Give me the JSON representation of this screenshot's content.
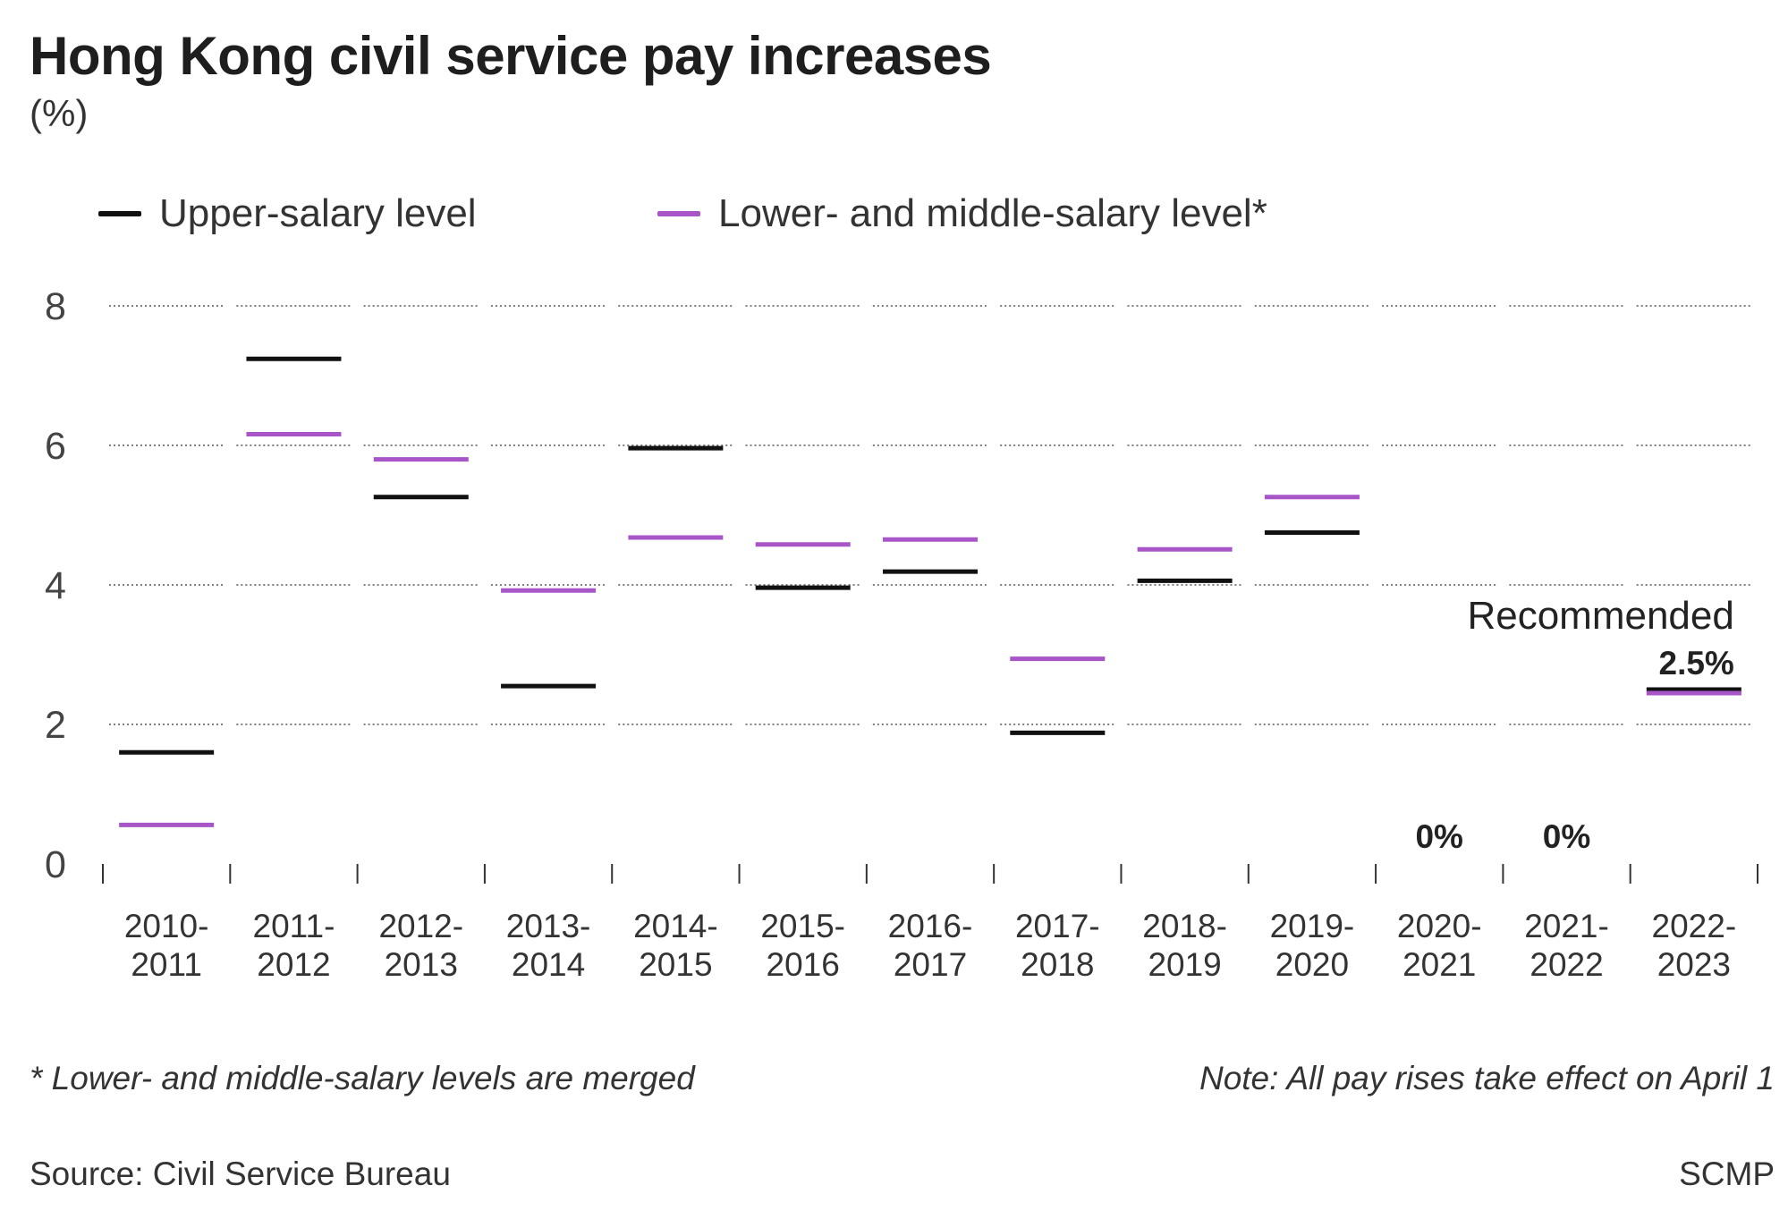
{
  "header": {
    "title": "Hong Kong civil service pay increases",
    "subtitle": "(%)"
  },
  "legend": {
    "upper": {
      "label": "Upper-salary level",
      "color": "#111111"
    },
    "lower": {
      "label": "Lower- and middle-salary level*",
      "color": "#a855c8"
    }
  },
  "footer": {
    "note_left": "* Lower- and middle-salary levels are merged",
    "note_right": "Note: All pay rises take effect on April 1",
    "source": "Source: Civil Service Bureau",
    "brand": "SCMP"
  },
  "chart_data": {
    "type": "line",
    "title": "Hong Kong civil service pay increases",
    "ylabel": "(%)",
    "xlabel": "",
    "ylim": [
      0,
      8
    ],
    "yticks": [
      "0",
      "2",
      "4",
      "6",
      "8"
    ],
    "grid": true,
    "legend_position": "top-left",
    "categories": [
      [
        "2010-",
        "2011"
      ],
      [
        "2011-",
        "2012"
      ],
      [
        "2012-",
        "2013"
      ],
      [
        "2013-",
        "2014"
      ],
      [
        "2014-",
        "2015"
      ],
      [
        "2015-",
        "2016"
      ],
      [
        "2016-",
        "2017"
      ],
      [
        "2017-",
        "2018"
      ],
      [
        "2018-",
        "2019"
      ],
      [
        "2019-",
        "2020"
      ],
      [
        "2020-",
        "2021"
      ],
      [
        "2021-",
        "2022"
      ],
      [
        "2022-",
        "2023"
      ]
    ],
    "series": [
      {
        "name": "Upper-salary level",
        "color": "#111111",
        "values": [
          1.6,
          7.24,
          5.26,
          2.55,
          5.96,
          3.96,
          4.19,
          1.88,
          4.06,
          4.75,
          0,
          0,
          2.5
        ]
      },
      {
        "name": "Lower- and middle-salary level*",
        "color": "#a855c8",
        "values": [
          0.56,
          6.16,
          5.8,
          3.92,
          4.68,
          4.58,
          4.65,
          2.94,
          4.51,
          5.26,
          0,
          0,
          2.5
        ]
      }
    ],
    "annotations": {
      "recommended_label": "Recommended",
      "recommended_value": "2.5%",
      "zero_labels": [
        "0%",
        "0%"
      ]
    }
  }
}
